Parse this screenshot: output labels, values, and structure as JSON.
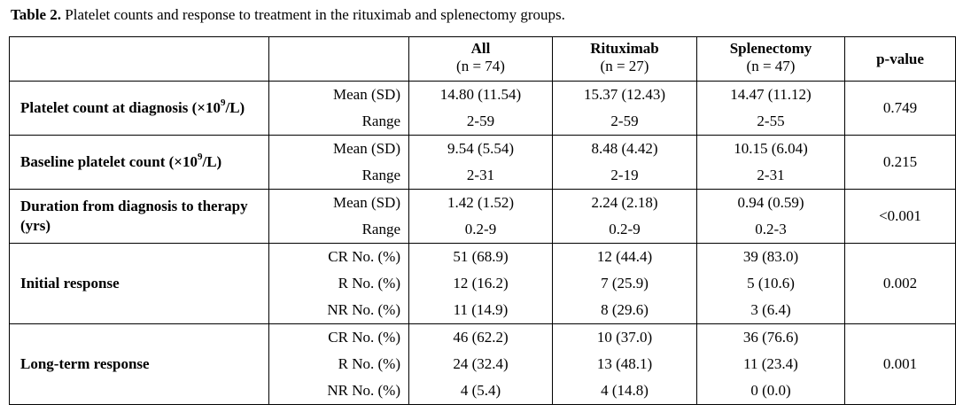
{
  "caption": {
    "label": "Table 2.",
    "text": " Platelet counts and response to treatment in the rituximab and splenectomy groups."
  },
  "header": {
    "all": {
      "title": "All",
      "n": "(n = 74)"
    },
    "rituximab": {
      "title": "Rituximab",
      "n": "(n = 27)"
    },
    "splenectomy": {
      "title": "Splenectomy",
      "n": "(n = 47)"
    },
    "pvalue": "p-value"
  },
  "groups": [
    {
      "label_pre": "Platelet count at diagnosis (×10",
      "label_sup": "9",
      "label_post": "/L)",
      "pvalue": "0.749",
      "rows": [
        {
          "stat": "Mean (SD)",
          "all": "14.80 (11.54)",
          "rituximab": "15.37 (12.43)",
          "splenectomy": "14.47 (11.12)"
        },
        {
          "stat": "Range",
          "all": "2-59",
          "rituximab": "2-59",
          "splenectomy": "2-55"
        }
      ]
    },
    {
      "label_pre": "Baseline platelet count (×10",
      "label_sup": "9",
      "label_post": "/L)",
      "pvalue": "0.215",
      "rows": [
        {
          "stat": "Mean (SD)",
          "all": "9.54 (5.54)",
          "rituximab": "8.48 (4.42)",
          "splenectomy": "10.15 (6.04)"
        },
        {
          "stat": "Range",
          "all": "2-31",
          "rituximab": "2-19",
          "splenectomy": "2-31"
        }
      ]
    },
    {
      "label_pre": "Duration from diagnosis to therapy (yrs)",
      "label_sup": "",
      "label_post": "",
      "pvalue": "<0.001",
      "rows": [
        {
          "stat": "Mean (SD)",
          "all": "1.42 (1.52)",
          "rituximab": "2.24 (2.18)",
          "splenectomy": "0.94 (0.59)"
        },
        {
          "stat": "Range",
          "all": "0.2-9",
          "rituximab": "0.2-9",
          "splenectomy": "0.2-3"
        }
      ]
    },
    {
      "label_pre": "Initial response",
      "label_sup": "",
      "label_post": "",
      "pvalue": "0.002",
      "rows": [
        {
          "stat": "CR No. (%)",
          "all": "51 (68.9)",
          "rituximab": "12 (44.4)",
          "splenectomy": "39 (83.0)"
        },
        {
          "stat": "R No. (%)",
          "all": "12 (16.2)",
          "rituximab": "7 (25.9)",
          "splenectomy": "5 (10.6)"
        },
        {
          "stat": "NR No. (%)",
          "all": "11 (14.9)",
          "rituximab": "8 (29.6)",
          "splenectomy": "3 (6.4)"
        }
      ]
    },
    {
      "label_pre": "Long-term response",
      "label_sup": "",
      "label_post": "",
      "pvalue": "0.001",
      "rows": [
        {
          "stat": "CR No. (%)",
          "all": "46 (62.2)",
          "rituximab": "10 (37.0)",
          "splenectomy": "36 (76.6)"
        },
        {
          "stat": "R No. (%)",
          "all": "24 (32.4)",
          "rituximab": "13 (48.1)",
          "splenectomy": "11 (23.4)"
        },
        {
          "stat": "NR No. (%)",
          "all": "4 (5.4)",
          "rituximab": "4 (14.8)",
          "splenectomy": "0 (0.0)"
        }
      ]
    }
  ]
}
